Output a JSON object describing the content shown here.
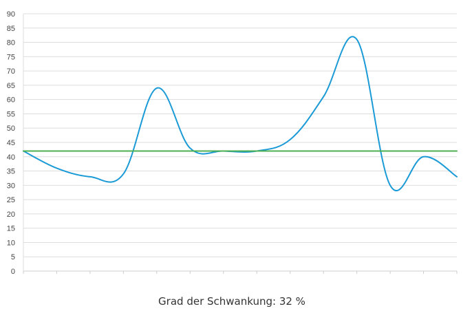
{
  "chart_data": {
    "type": "line",
    "title": "",
    "xlabel": "",
    "ylabel": "",
    "ylim": [
      0,
      90
    ],
    "y_ticks": [
      0,
      5,
      10,
      15,
      20,
      25,
      30,
      35,
      40,
      45,
      50,
      55,
      60,
      65,
      70,
      75,
      80,
      85,
      90
    ],
    "grid": true,
    "legend": "none",
    "x": [
      0,
      1,
      2,
      3,
      4,
      5,
      6,
      7,
      8,
      9,
      10,
      11,
      12,
      13
    ],
    "series": [
      {
        "values": [
          42,
          36,
          33,
          34,
          64,
          43,
          42,
          42,
          46,
          61,
          81,
          30,
          40,
          33
        ],
        "color": "#1a9ad6"
      },
      {
        "values": [
          42,
          42,
          42,
          42,
          42,
          42,
          42,
          42,
          42,
          42,
          42,
          42,
          42,
          42
        ],
        "color": "#4caf50"
      }
    ],
    "caption": "Grad der Schwankung: 32 %"
  }
}
